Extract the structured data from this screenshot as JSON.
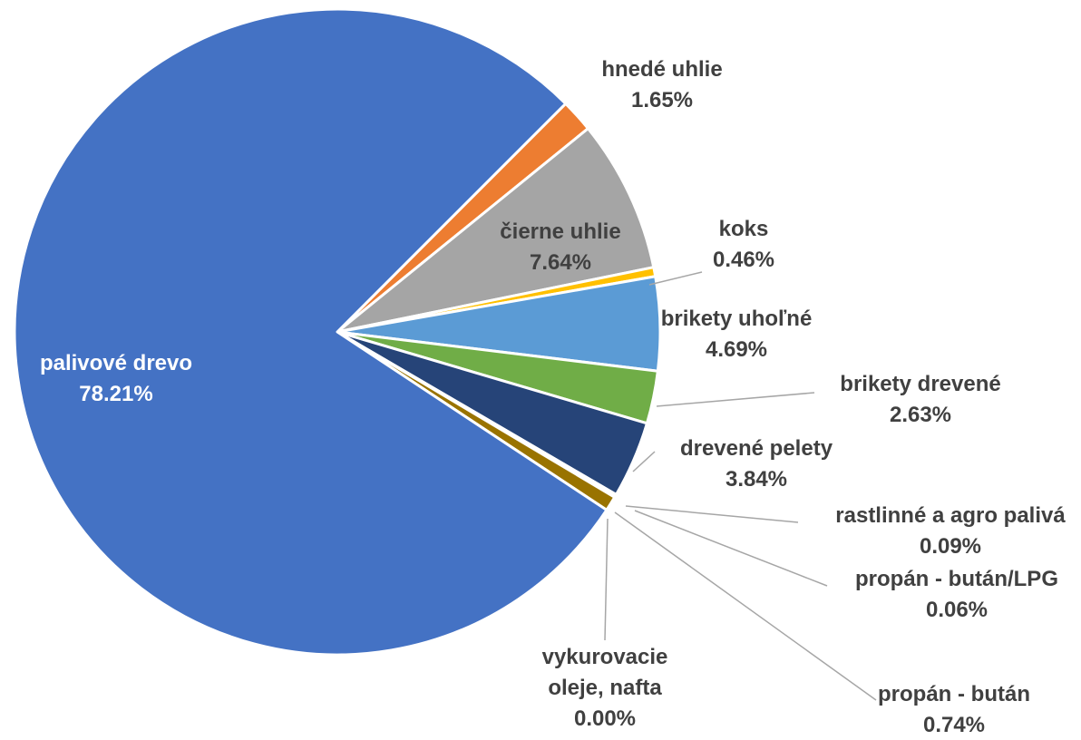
{
  "chart_data": {
    "type": "pie",
    "slices": [
      {
        "name": "hnedé uhlie",
        "value_label": "1.65%",
        "value": 1.65,
        "color": "#ED7D31"
      },
      {
        "name": "čierne uhlie",
        "value_label": "7.64%",
        "value": 7.64,
        "color": "#A5A5A5"
      },
      {
        "name": "koks",
        "value_label": "0.46%",
        "value": 0.46,
        "color": "#FFC000"
      },
      {
        "name": "brikety uhoľné",
        "value_label": "4.69%",
        "value": 4.69,
        "color": "#5B9BD5"
      },
      {
        "name": "brikety drevené",
        "value_label": "2.63%",
        "value": 2.63,
        "color": "#70AD47"
      },
      {
        "name": "drevené pelety",
        "value_label": "3.84%",
        "value": 3.84,
        "color": "#264478"
      },
      {
        "name": "rastlinné a agro palivá",
        "value_label": "0.09%",
        "value": 0.09,
        "color": "#9E480E"
      },
      {
        "name": "propán - bután/LPG",
        "value_label": "0.06%",
        "value": 0.06,
        "color": "#636363"
      },
      {
        "name": "propán - bután",
        "value_label": "0.74%",
        "value": 0.74,
        "color": "#997300"
      },
      {
        "name": "vykurovacie oleje, nafta",
        "value_label": "0.00%",
        "value": 0.0,
        "color": "#255E91"
      },
      {
        "name": "palivové drevo",
        "value_label": "78.21%",
        "value": 78.21,
        "color": "#4472C4"
      }
    ]
  }
}
